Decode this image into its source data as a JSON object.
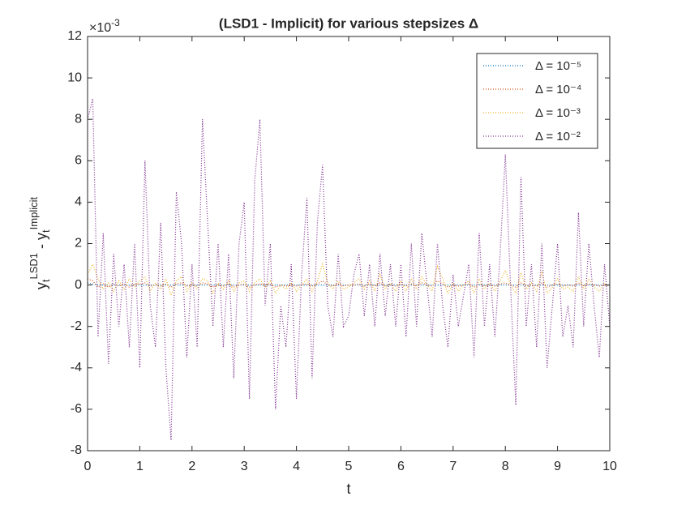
{
  "chart_data": {
    "type": "line",
    "title": "(LSD1 - Implicit) for various stepsizes Δ",
    "xlabel": "t",
    "ylabel": [
      {
        "text": "y",
        "pos": "base"
      },
      {
        "text": "t",
        "pos": "sub"
      },
      {
        "text": "LSD1",
        "pos": "sup"
      },
      {
        "text": " - y",
        "pos": "base"
      },
      {
        "text": "t",
        "pos": "sub"
      },
      {
        "text": "Implicit",
        "pos": "sup"
      }
    ],
    "y_exponent_label": {
      "base": "×10",
      "exp": "-3"
    },
    "xlim": [
      0,
      10
    ],
    "ylim": [
      -8,
      12
    ],
    "xticks": [
      0,
      1,
      2,
      3,
      4,
      5,
      6,
      7,
      8,
      9,
      10
    ],
    "yticks": [
      -8,
      -6,
      -4,
      -2,
      0,
      2,
      4,
      6,
      8,
      10,
      12
    ],
    "grid": false,
    "legend": "northeast",
    "line_style": "dotted",
    "x": [
      0,
      0.1,
      0.2,
      0.3,
      0.4,
      0.5,
      0.6,
      0.7,
      0.8,
      0.9,
      1,
      1.1,
      1.2,
      1.3,
      1.4,
      1.5,
      1.6,
      1.7,
      1.8,
      1.9,
      2,
      2.1,
      2.2,
      2.3,
      2.4,
      2.5,
      2.6,
      2.7,
      2.8,
      2.9,
      3,
      3.1,
      3.2,
      3.3,
      3.4,
      3.5,
      3.6,
      3.7,
      3.8,
      3.9,
      4,
      4.1,
      4.2,
      4.3,
      4.4,
      4.5,
      4.6,
      4.7,
      4.8,
      4.9,
      5,
      5.1,
      5.2,
      5.3,
      5.4,
      5.5,
      5.6,
      5.7,
      5.8,
      5.9,
      6,
      6.1,
      6.2,
      6.3,
      6.4,
      6.5,
      6.6,
      6.7,
      6.8,
      6.9,
      7,
      7.1,
      7.2,
      7.3,
      7.4,
      7.5,
      7.6,
      7.7,
      7.8,
      7.9,
      8,
      8.1,
      8.2,
      8.3,
      8.4,
      8.5,
      8.6,
      8.7,
      8.8,
      8.9,
      9,
      9.1,
      9.2,
      9.3,
      9.4,
      9.5,
      9.6,
      9.7,
      9.8,
      9.9,
      10
    ],
    "series": [
      {
        "name": "Δ = 10⁻⁵",
        "color": "#0072bd",
        "values": [
          0.1,
          0.05,
          0,
          0,
          0,
          0,
          0,
          0,
          0,
          0,
          0,
          0,
          0,
          0,
          0,
          0,
          0,
          0,
          0,
          0,
          0,
          0,
          0,
          0,
          0,
          0,
          0,
          0,
          0,
          0,
          0,
          0,
          0,
          0,
          0,
          0,
          0,
          0,
          0,
          0,
          0,
          0,
          0,
          0,
          0,
          0,
          0,
          0,
          0,
          0,
          0,
          0,
          0,
          0,
          0,
          0,
          0,
          0,
          0,
          0,
          0,
          0,
          0,
          0,
          0,
          0,
          0,
          0,
          0,
          0,
          0,
          0,
          0,
          0,
          0,
          0,
          0,
          0,
          0,
          0,
          0,
          0,
          0,
          0,
          0,
          0,
          0,
          0,
          0,
          0,
          0,
          0,
          0,
          0,
          0,
          0,
          0,
          0,
          0,
          0,
          0
        ]
      },
      {
        "name": "Δ = 10⁻⁴",
        "color": "#d95319",
        "values": [
          0.3,
          0.2,
          -0.1,
          0.05,
          -0.1,
          0.05,
          -0.05,
          0.05,
          -0.1,
          0.05,
          0.05,
          0.1,
          -0.05,
          0,
          -0.05,
          0.05,
          -0.1,
          0.05,
          0.1,
          -0.05,
          0,
          -0.05,
          0.1,
          0.05,
          -0.1,
          0,
          -0.05,
          0.05,
          -0.1,
          0,
          0.05,
          -0.1,
          0,
          0.05,
          0,
          0.05,
          -0.1,
          0,
          -0.05,
          0,
          -0.05,
          0,
          0.05,
          -0.05,
          0.05,
          0.2,
          0,
          -0.05,
          0.05,
          -0.05,
          0,
          0,
          0.05,
          -0.05,
          0.05,
          -0.05,
          0.1,
          -0.05,
          0,
          -0.05,
          0.05,
          -0.05,
          0.05,
          -0.05,
          0.1,
          0,
          -0.05,
          0.2,
          0.05,
          -0.1,
          0,
          -0.05,
          0,
          0.05,
          -0.1,
          0.05,
          -0.05,
          0,
          -0.05,
          0.05,
          0.1,
          0,
          -0.1,
          0.1,
          -0.05,
          0,
          -0.05,
          0.1,
          -0.1,
          0,
          0.05,
          -0.05,
          0,
          -0.05,
          0.1,
          -0.05,
          0.05,
          0,
          -0.05,
          0,
          0
        ]
      },
      {
        "name": "Δ = 10⁻³",
        "color": "#edb120",
        "values": [
          0.5,
          1,
          0.3,
          -0.2,
          0.1,
          -0.3,
          0.2,
          -0.2,
          0.3,
          -0.1,
          0.2,
          0.4,
          -0.3,
          0.1,
          -0.2,
          0.3,
          -0.5,
          0.2,
          0.4,
          -0.3,
          0.1,
          -0.2,
          0.3,
          0.2,
          -0.4,
          0.1,
          -0.2,
          0.2,
          -0.3,
          0.1,
          0.2,
          -0.3,
          0.1,
          0.3,
          -0.1,
          0.2,
          -0.4,
          0,
          -0.2,
          0.1,
          -0.3,
          0,
          0.3,
          -0.3,
          0.2,
          1,
          0.1,
          -0.2,
          0.2,
          -0.2,
          -0.1,
          0.1,
          0.3,
          -0.2,
          0.2,
          -0.3,
          0.5,
          -0.2,
          0.1,
          -0.3,
          0.2,
          -0.3,
          0.3,
          -0.2,
          0.4,
          0,
          -0.3,
          0.9,
          0.3,
          -0.4,
          0.1,
          -0.3,
          0,
          0.2,
          -0.4,
          0.3,
          -0.2,
          0.1,
          -0.3,
          0.2,
          0.7,
          0,
          -0.4,
          0.6,
          -0.2,
          0.1,
          -0.3,
          0.6,
          -0.4,
          -0.1,
          0.3,
          -0.2,
          -0.1,
          -0.3,
          0.4,
          -0.2,
          0.3,
          -0.1,
          -0.3,
          0.1,
          -0.1
        ]
      },
      {
        "name": "Δ = 10⁻²",
        "color": "#7e2f8e",
        "values": [
          8,
          9,
          -2.5,
          2.5,
          -3.8,
          1.5,
          -2,
          1,
          -3,
          2,
          -4,
          6,
          -1,
          -3,
          3,
          -4,
          -7.5,
          4.5,
          2,
          -3.5,
          1,
          -3,
          8,
          3,
          -2,
          2,
          -3,
          1.5,
          -4.5,
          2,
          4,
          -5.5,
          5,
          8,
          -1,
          2,
          -6,
          -1,
          -3,
          1,
          -5.5,
          0.5,
          4.2,
          -4.5,
          3,
          5.8,
          -1,
          -2.5,
          1.5,
          -2,
          -1.5,
          0.5,
          1.5,
          -1.5,
          1,
          -2,
          1.5,
          -1.5,
          1,
          -2,
          1,
          -2.5,
          2,
          -2,
          2.5,
          0,
          -2.5,
          2,
          -1,
          -3,
          0.5,
          -2,
          -0.5,
          1,
          -3.5,
          2.5,
          -2,
          1,
          -2.5,
          1.5,
          6.3,
          0,
          -5.8,
          5.2,
          -2,
          1,
          -3,
          2,
          -4,
          -1,
          2,
          -2.5,
          -1,
          -3,
          3.5,
          -2,
          2,
          -1,
          -3.5,
          1,
          -2
        ]
      }
    ]
  }
}
